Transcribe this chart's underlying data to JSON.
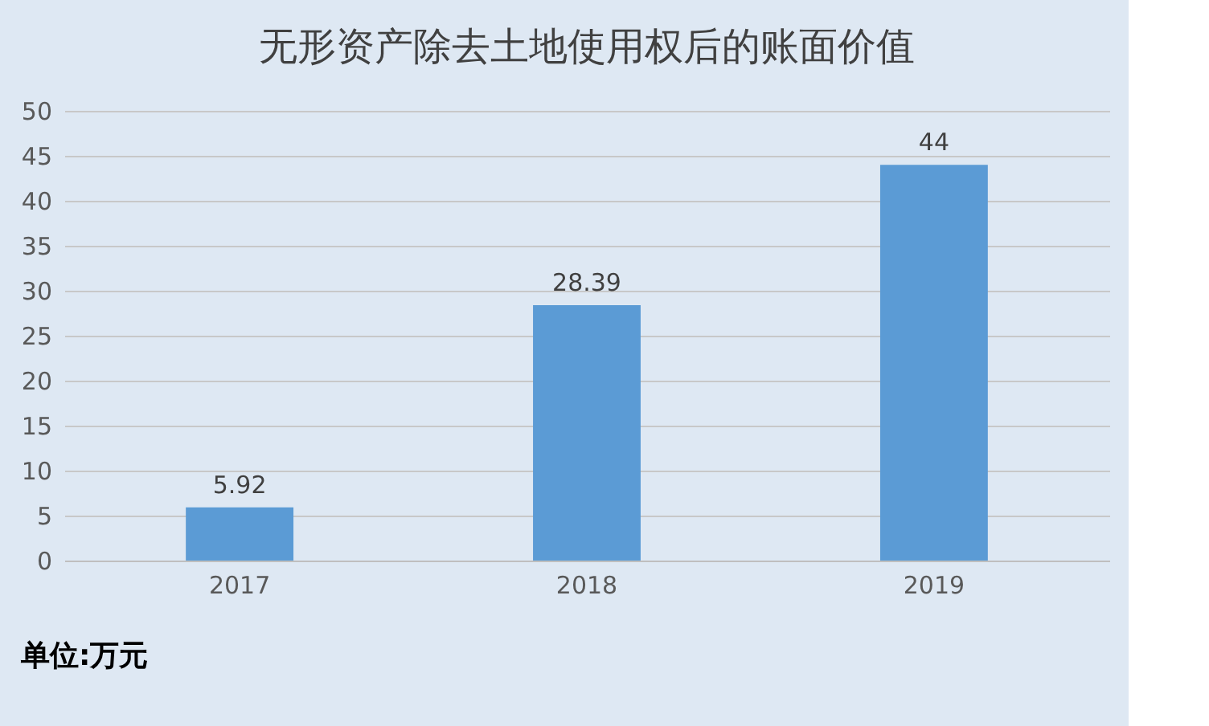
{
  "chart_data": {
    "type": "bar",
    "title": "无形资产除去土地使用权后的账面价值",
    "categories": [
      "2017",
      "2018",
      "2019"
    ],
    "values": [
      5.92,
      28.39,
      44
    ],
    "color": "#5b9bd5",
    "ylim": [
      0,
      50
    ],
    "yticks": [
      0,
      5,
      10,
      15,
      20,
      25,
      30,
      35,
      40,
      45,
      50
    ],
    "grid": "y",
    "data_labels": true,
    "annotations": [
      "单位:万元"
    ]
  }
}
